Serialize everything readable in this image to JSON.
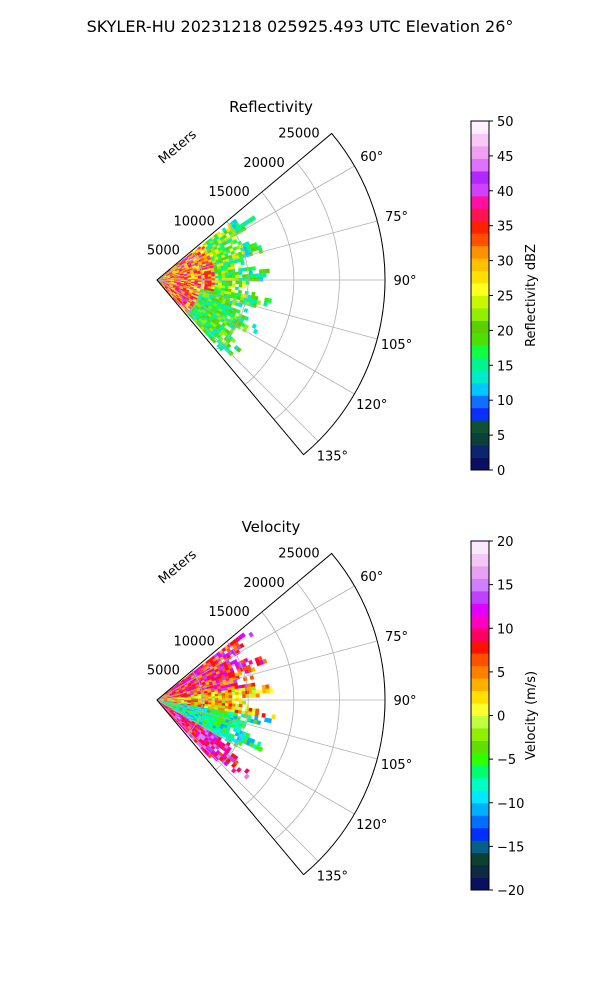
{
  "suptitle": "SKYLER-HU  20231218  025925.493 UTC Elevation 26°",
  "chart_data": [
    {
      "type": "heatmap",
      "projection": "polar-sector",
      "title": "Reflectivity",
      "radial_label": "Meters",
      "r_ticks": [
        5000,
        10000,
        15000,
        20000,
        25000
      ],
      "r_tick_labels": [
        "5000",
        "10000",
        "15000",
        "20000",
        "25000"
      ],
      "rlim": [
        0,
        25000
      ],
      "theta_range_deg": [
        50,
        140
      ],
      "theta_ticks": [
        60,
        75,
        90,
        105,
        120,
        135
      ],
      "theta_tick_labels": [
        "60°",
        "75°",
        "90°",
        "105°",
        "120°",
        "135°"
      ],
      "grid": true,
      "echo_extent_m": 13500,
      "colorbar": {
        "label": "Reflectivity dBZ",
        "range": [
          0,
          50
        ],
        "ticks": [
          0,
          5,
          10,
          15,
          20,
          25,
          30,
          35,
          40,
          45,
          50
        ],
        "tick_labels": [
          "0",
          "5",
          "10",
          "15",
          "20",
          "25",
          "30",
          "35",
          "40",
          "45",
          "50"
        ],
        "colors": [
          "#0a1060",
          "#0c2570",
          "#0c3f3a",
          "#0e5232",
          "#0a2fff",
          "#0f70ff",
          "#00c8ff",
          "#00eacc",
          "#00f590",
          "#10ff40",
          "#50e000",
          "#5ad000",
          "#90f000",
          "#c8f800",
          "#ffff20",
          "#ffe000",
          "#ffc000",
          "#ff9000",
          "#ff5000",
          "#ff2000",
          "#ff1450",
          "#ff10a0",
          "#d040ff",
          "#b028ff",
          "#e070ff",
          "#f0a0f0",
          "#f8c8f8",
          "#fff0ff"
        ]
      }
    },
    {
      "type": "heatmap",
      "projection": "polar-sector",
      "title": "Velocity",
      "radial_label": "Meters",
      "r_ticks": [
        5000,
        10000,
        15000,
        20000,
        25000
      ],
      "r_tick_labels": [
        "5000",
        "10000",
        "15000",
        "20000",
        "25000"
      ],
      "rlim": [
        0,
        25000
      ],
      "theta_range_deg": [
        50,
        140
      ],
      "theta_ticks": [
        60,
        75,
        90,
        105,
        120,
        135
      ],
      "theta_tick_labels": [
        "60°",
        "75°",
        "90°",
        "105°",
        "120°",
        "135°"
      ],
      "grid": true,
      "echo_extent_m": 13500,
      "colorbar": {
        "label": "Velocity (m/s)",
        "range": [
          -20,
          20
        ],
        "ticks": [
          -20,
          -15,
          -10,
          -5,
          0,
          5,
          10,
          15,
          20
        ],
        "tick_labels": [
          "−20",
          "−15",
          "−10",
          "−5",
          "0",
          "5",
          "10",
          "15",
          "20"
        ],
        "colors": [
          "#0a1060",
          "#0c2a40",
          "#0c4030",
          "#08608a",
          "#0030ff",
          "#0070ff",
          "#00b0ff",
          "#00e8ff",
          "#00ffc0",
          "#00ff70",
          "#30ff00",
          "#60e000",
          "#90f000",
          "#c0ff40",
          "#ffff30",
          "#ffe000",
          "#ffb000",
          "#ff8000",
          "#ff5000",
          "#ff1000",
          "#ff0060",
          "#ff00c0",
          "#e000ff",
          "#c040ff",
          "#d080ff",
          "#e8a0f0",
          "#f4c8f4",
          "#fce8fc"
        ]
      }
    }
  ]
}
